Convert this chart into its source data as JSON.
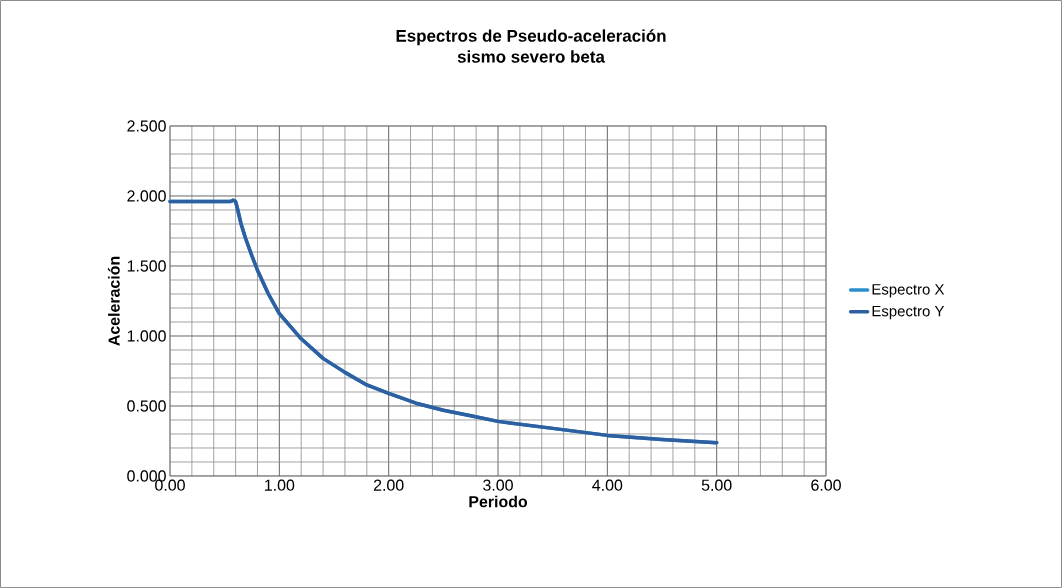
{
  "chart_data": {
    "type": "line",
    "title": "Espectros de Pseudo-aceleración",
    "subtitle": "sismo severo beta",
    "xlabel": "Periodo",
    "ylabel": "Aceleración",
    "x": [
      0,
      0.1,
      0.2,
      0.3,
      0.4,
      0.5,
      0.55,
      0.58,
      0.6,
      0.62,
      0.65,
      0.69,
      0.75,
      0.8,
      0.9,
      1.0,
      1.1,
      1.2,
      1.4,
      1.6,
      1.8,
      2.0,
      2.25,
      2.5,
      2.75,
      3.0,
      3.5,
      4.0,
      4.5,
      5.0
    ],
    "series": [
      {
        "name": "Espectro X",
        "color": "#2b8fcc",
        "values": [
          1.96,
          1.96,
          1.96,
          1.96,
          1.96,
          1.96,
          1.96,
          1.97,
          1.96,
          1.9,
          1.8,
          1.7,
          1.57,
          1.47,
          1.3,
          1.16,
          1.07,
          0.98,
          0.84,
          0.74,
          0.65,
          0.59,
          0.52,
          0.47,
          0.43,
          0.39,
          0.34,
          0.29,
          0.26,
          0.238
        ]
      },
      {
        "name": "Espectro Y",
        "color": "#2e5fa1",
        "values": [
          1.96,
          1.96,
          1.96,
          1.96,
          1.96,
          1.96,
          1.96,
          1.97,
          1.96,
          1.9,
          1.8,
          1.7,
          1.57,
          1.47,
          1.3,
          1.16,
          1.07,
          0.98,
          0.84,
          0.74,
          0.65,
          0.59,
          0.52,
          0.47,
          0.43,
          0.39,
          0.34,
          0.29,
          0.26,
          0.238
        ]
      }
    ],
    "xlim": [
      0,
      6
    ],
    "ylim": [
      0,
      2.5
    ],
    "xticks": [
      {
        "value": 0,
        "label": "0.00"
      },
      {
        "value": 1,
        "label": "1.00"
      },
      {
        "value": 2,
        "label": "2.00"
      },
      {
        "value": 3,
        "label": "3.00"
      },
      {
        "value": 4,
        "label": "4.00"
      },
      {
        "value": 5,
        "label": "5.00"
      },
      {
        "value": 6,
        "label": "6.00"
      }
    ],
    "yticks": [
      {
        "value": 0,
        "label": "0.000"
      },
      {
        "value": 0.5,
        "label": "0.500"
      },
      {
        "value": 1,
        "label": "1.000"
      },
      {
        "value": 1.5,
        "label": "1.500"
      },
      {
        "value": 2,
        "label": "2.000"
      },
      {
        "value": 2.5,
        "label": "2.500"
      }
    ],
    "grid": true,
    "legend": "right",
    "marker": "none",
    "line_style": "solid"
  }
}
